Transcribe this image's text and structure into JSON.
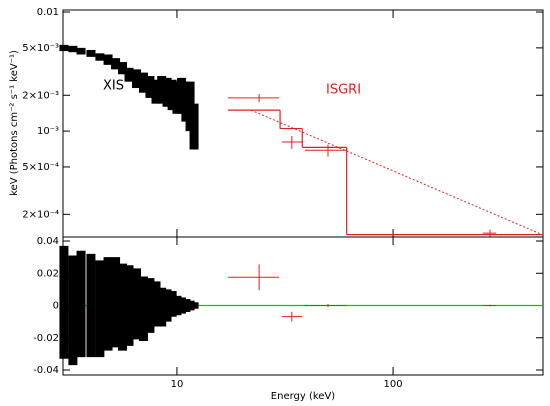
{
  "chart_data": [
    {
      "type": "errorbar",
      "xscale": "log",
      "yscale": "log",
      "ylabel": "keV (Photons cm⁻² s⁻¹ keV⁻¹)",
      "xlim": [
        2.97,
        494
      ],
      "ylim": [
        0.000129,
        0.0104
      ],
      "yticks": [
        {
          "value": 0.01,
          "label": "0.01"
        },
        {
          "value": 0.005,
          "label": "5×10⁻³"
        },
        {
          "value": 0.002,
          "label": "2×10⁻³"
        },
        {
          "value": 0.001,
          "label": "10⁻³"
        },
        {
          "value": 0.0005,
          "label": "5×10⁻⁴"
        },
        {
          "value": 0.0002,
          "label": "2×10⁻⁴"
        }
      ],
      "annotations": [
        {
          "text": "XIS",
          "color": "#000000"
        },
        {
          "text": "ISGRI",
          "color": "#e02020"
        }
      ],
      "series": [
        {
          "name": "XIS",
          "color": "#000000",
          "x": [
            3,
            3.3,
            3.6,
            4,
            4.4,
            4.8,
            5.2,
            5.6,
            6,
            6.5,
            7,
            7.5,
            8,
            8.5,
            9,
            9.5,
            10,
            10.5,
            11,
            11.5,
            12
          ],
          "values": [
            0.005,
            0.0049,
            0.0047,
            0.0045,
            0.0042,
            0.004,
            0.0037,
            0.0034,
            0.003,
            0.0028,
            0.0026,
            0.0024,
            0.0022,
            0.0023,
            0.0022,
            0.0021,
            0.002,
            0.0021,
            0.0019,
            0.0018,
            0.0012
          ],
          "errors": [
            0.0003,
            0.0003,
            0.0003,
            0.0003,
            0.0003,
            0.0004,
            0.0004,
            0.0004,
            0.0004,
            0.0005,
            0.0005,
            0.0005,
            0.0005,
            0.0006,
            0.0006,
            0.0006,
            0.0006,
            0.0007,
            0.0007,
            0.0008,
            0.0005
          ]
        },
        {
          "name": "ISGRI",
          "color": "#e02020",
          "x": [
            24,
            34,
            50,
            281
          ],
          "xlo": [
            17.2,
            30.6,
            39.1,
            260
          ],
          "xhi": [
            29.7,
            37.9,
            61,
            300
          ],
          "values": [
            0.0019,
            0.00081,
            0.00069,
            0.000139
          ],
          "errors": [
            0.00015,
            0.0001,
            8e-05,
            1e-05
          ]
        }
      ],
      "model_step": {
        "color": "#e02020",
        "bins": [
          17.2,
          30,
          38,
          61,
          494
        ],
        "values": [
          0.0015,
          0.00105,
          0.00073,
          0.000135
        ]
      },
      "model_line": {
        "color": "#e02020",
        "x": [
          22,
          490
        ],
        "values": [
          0.0015,
          0.000135
        ]
      }
    },
    {
      "type": "errorbar",
      "xscale": "log",
      "yscale": "linear",
      "xlabel": "Energy (keV)",
      "xlim": [
        2.97,
        494
      ],
      "xticks": [
        10,
        100
      ],
      "ylim": [
        -0.0431,
        0.0425
      ],
      "yticks": [
        0.04,
        0.02,
        0,
        -0.02,
        -0.04
      ],
      "zero_line_color": "#00cc00",
      "series": [
        {
          "color": "#000000",
          "x": [
            3,
            3.3,
            3.6,
            4,
            4.4,
            4.8,
            5.2,
            5.6,
            6,
            6.5,
            7,
            7.5,
            8,
            8.5,
            9,
            9.5,
            10,
            10.5,
            11,
            11.5,
            12
          ],
          "values": [
            0.002,
            -0.003,
            0.001,
            0,
            -0.002,
            0.001,
            0.002,
            -0.001,
            0,
            0.001,
            -0.002,
            0,
            0.001,
            -0.001,
            0,
            0.001,
            0,
            0,
            0,
            0,
            0
          ],
          "errors": [
            0.035,
            0.034,
            0.033,
            0.032,
            0.03,
            0.029,
            0.028,
            0.027,
            0.025,
            0.022,
            0.02,
            0.017,
            0.014,
            0.012,
            0.01,
            0.008,
            0.006,
            0.005,
            0.004,
            0.003,
            0.002
          ]
        },
        {
          "color": "#e02020",
          "x": [
            24,
            34,
            50,
            281
          ],
          "xlo": [
            17.2,
            30.6,
            39.1,
            260
          ],
          "xhi": [
            29.7,
            37.9,
            61,
            300
          ],
          "values": [
            0.0175,
            -0.0069,
            0,
            0
          ],
          "errors": [
            0.008,
            0.003,
            0.001,
            0.0005
          ]
        }
      ]
    }
  ]
}
